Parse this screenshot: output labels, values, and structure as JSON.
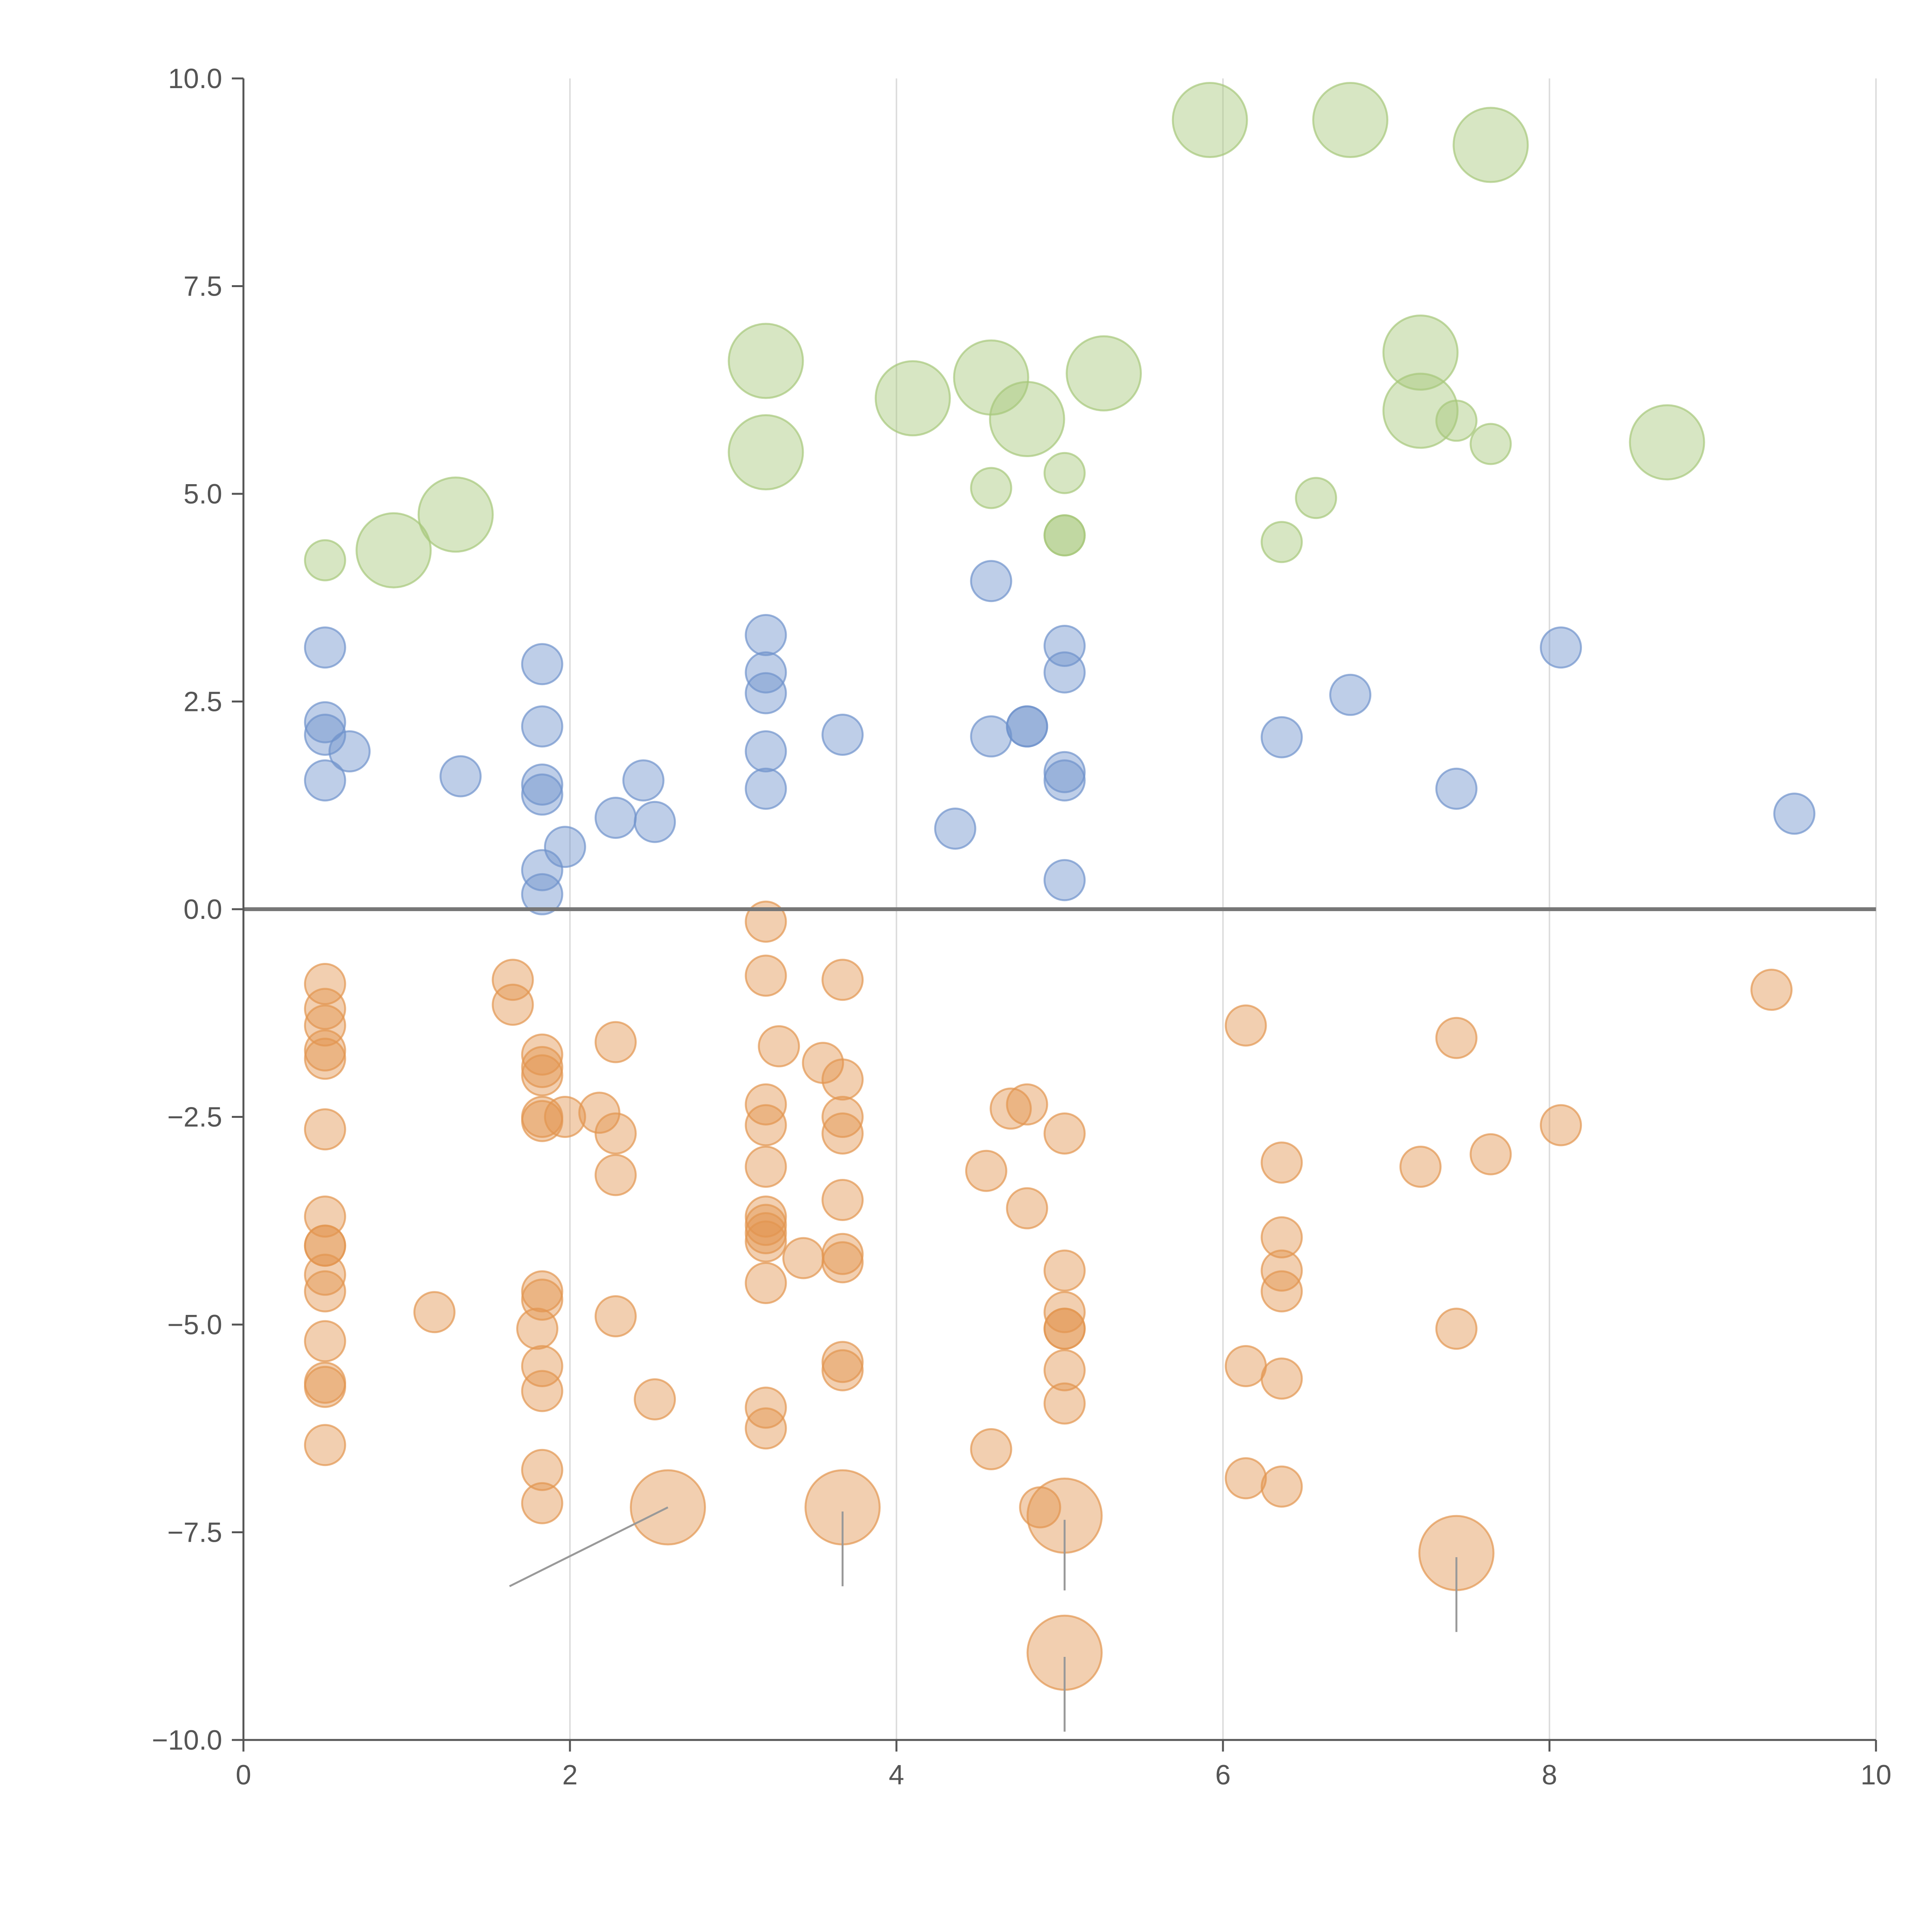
{
  "chart_data": {
    "type": "scatter",
    "title": "",
    "xlabel": "",
    "ylabel": "",
    "xlim": [
      0,
      10
    ],
    "ylim": [
      -10,
      10
    ],
    "x_ticks": [
      0,
      2,
      4,
      6,
      8,
      10
    ],
    "x_tick_labels": [
      "0",
      "2",
      "4",
      "6",
      "8",
      "10"
    ],
    "y_ticks": [
      10,
      7.5,
      5,
      2.5,
      0,
      -2.5,
      -5,
      -7.5,
      -10
    ],
    "y_tick_labels": [
      "10.0",
      "7.5",
      "5.0",
      "2.5",
      "0.0",
      "−2.5",
      "−5.0",
      "−7.5",
      "−10.0"
    ],
    "vertical_gridlines": true,
    "baseline_y": 0,
    "colors": {
      "blue": "#6f93cc",
      "orange": "#e39550",
      "green": "#a7c77b",
      "axis": "#555555",
      "grid": "#dddddd"
    },
    "series": [
      {
        "name": "positive-low",
        "color_key": "blue",
        "points": [
          [
            0.5,
            3.15,
            1
          ],
          [
            0.5,
            2.25,
            1
          ],
          [
            0.5,
            2.1,
            1
          ],
          [
            0.5,
            1.55,
            1
          ],
          [
            0.65,
            1.9,
            1
          ],
          [
            1.33,
            1.6,
            1
          ],
          [
            1.83,
            2.95,
            1
          ],
          [
            1.83,
            2.2,
            1
          ],
          [
            1.83,
            1.5,
            1
          ],
          [
            1.83,
            1.38,
            1
          ],
          [
            1.83,
            0.47,
            1
          ],
          [
            1.83,
            0.18,
            1
          ],
          [
            1.97,
            0.75,
            1
          ],
          [
            2.28,
            1.1,
            1
          ],
          [
            2.45,
            1.55,
            1
          ],
          [
            2.52,
            1.05,
            1
          ],
          [
            3.2,
            3.3,
            1
          ],
          [
            3.2,
            2.85,
            1
          ],
          [
            3.2,
            2.6,
            1
          ],
          [
            3.2,
            1.9,
            1
          ],
          [
            3.2,
            1.45,
            1
          ],
          [
            3.67,
            2.1,
            1
          ],
          [
            4.36,
            0.97,
            1
          ],
          [
            4.58,
            3.95,
            1
          ],
          [
            4.58,
            2.08,
            1
          ],
          [
            4.8,
            2.2,
            1
          ],
          [
            4.8,
            2.2,
            1
          ],
          [
            5.03,
            3.17,
            1
          ],
          [
            5.03,
            2.85,
            1
          ],
          [
            5.03,
            1.65,
            1
          ],
          [
            5.03,
            1.55,
            1
          ],
          [
            5.03,
            0.35,
            1
          ],
          [
            6.36,
            2.07,
            1
          ],
          [
            6.78,
            2.58,
            1
          ],
          [
            7.43,
            1.45,
            1
          ],
          [
            8.07,
            3.15,
            1
          ],
          [
            9.5,
            1.15,
            1
          ]
        ]
      },
      {
        "name": "negative",
        "color_key": "orange",
        "points": [
          [
            0.5,
            -0.9,
            1
          ],
          [
            0.5,
            -1.2,
            1
          ],
          [
            0.5,
            -1.4,
            1
          ],
          [
            0.5,
            -1.7,
            1
          ],
          [
            0.5,
            -1.8,
            1
          ],
          [
            0.5,
            -2.65,
            1
          ],
          [
            0.5,
            -3.7,
            1
          ],
          [
            0.5,
            -4.05,
            1
          ],
          [
            0.5,
            -4.05,
            1
          ],
          [
            0.5,
            -4.4,
            1
          ],
          [
            0.5,
            -4.6,
            1
          ],
          [
            0.5,
            -5.2,
            1
          ],
          [
            0.5,
            -5.7,
            1
          ],
          [
            0.5,
            -5.75,
            1
          ],
          [
            0.5,
            -6.45,
            1
          ],
          [
            1.17,
            -4.85,
            1
          ],
          [
            1.65,
            -0.85,
            1
          ],
          [
            1.65,
            -1.15,
            1
          ],
          [
            1.8,
            -5.05,
            1
          ],
          [
            1.83,
            -1.75,
            1
          ],
          [
            1.83,
            -1.9,
            1
          ],
          [
            1.83,
            -2.0,
            1
          ],
          [
            1.83,
            -2.5,
            1
          ],
          [
            1.83,
            -2.55,
            1
          ],
          [
            1.83,
            -4.6,
            1
          ],
          [
            1.83,
            -4.7,
            1
          ],
          [
            1.83,
            -5.5,
            1
          ],
          [
            1.83,
            -5.8,
            1
          ],
          [
            1.83,
            -6.75,
            1
          ],
          [
            1.83,
            -7.15,
            1
          ],
          [
            1.97,
            -2.5,
            1
          ],
          [
            2.18,
            -2.45,
            1
          ],
          [
            2.28,
            -1.6,
            1
          ],
          [
            2.28,
            -2.7,
            1
          ],
          [
            2.28,
            -3.2,
            1
          ],
          [
            2.28,
            -4.9,
            1
          ],
          [
            2.52,
            -5.9,
            1
          ],
          [
            2.6,
            -7.2,
            3
          ],
          [
            3.2,
            -0.15,
            1
          ],
          [
            3.2,
            -0.8,
            1
          ],
          [
            3.2,
            -2.35,
            1
          ],
          [
            3.2,
            -2.6,
            1
          ],
          [
            3.2,
            -3.1,
            1
          ],
          [
            3.2,
            -3.7,
            1
          ],
          [
            3.2,
            -3.8,
            1
          ],
          [
            3.2,
            -3.9,
            1
          ],
          [
            3.2,
            -4.0,
            1
          ],
          [
            3.2,
            -4.5,
            1
          ],
          [
            3.2,
            -6.0,
            1
          ],
          [
            3.2,
            -6.25,
            1
          ],
          [
            3.28,
            -1.65,
            1
          ],
          [
            3.43,
            -4.2,
            1
          ],
          [
            3.55,
            -1.85,
            1
          ],
          [
            3.67,
            -0.85,
            1
          ],
          [
            3.67,
            -2.05,
            1
          ],
          [
            3.67,
            -2.5,
            1
          ],
          [
            3.67,
            -2.7,
            1
          ],
          [
            3.67,
            -3.5,
            1
          ],
          [
            3.67,
            -4.15,
            1
          ],
          [
            3.67,
            -4.25,
            1
          ],
          [
            3.67,
            -5.45,
            1
          ],
          [
            3.67,
            -5.55,
            1
          ],
          [
            3.67,
            -7.2,
            3
          ],
          [
            4.55,
            -3.15,
            1
          ],
          [
            4.58,
            -6.5,
            1
          ],
          [
            4.7,
            -2.4,
            1
          ],
          [
            4.8,
            -2.35,
            1
          ],
          [
            4.8,
            -3.6,
            1
          ],
          [
            4.88,
            -7.2,
            1
          ],
          [
            5.03,
            -2.7,
            1
          ],
          [
            5.03,
            -4.35,
            1
          ],
          [
            5.03,
            -4.85,
            1
          ],
          [
            5.03,
            -5.05,
            1
          ],
          [
            5.03,
            -5.05,
            1
          ],
          [
            5.03,
            -5.55,
            1
          ],
          [
            5.03,
            -5.95,
            1
          ],
          [
            5.03,
            -7.3,
            3
          ],
          [
            5.03,
            -8.95,
            3
          ],
          [
            6.14,
            -1.4,
            1
          ],
          [
            6.14,
            -5.5,
            1
          ],
          [
            6.14,
            -6.85,
            1
          ],
          [
            6.36,
            -3.05,
            1
          ],
          [
            6.36,
            -3.95,
            1
          ],
          [
            6.36,
            -4.35,
            1
          ],
          [
            6.36,
            -4.6,
            1
          ],
          [
            6.36,
            -5.65,
            1
          ],
          [
            6.36,
            -6.95,
            1
          ],
          [
            7.21,
            -3.1,
            1
          ],
          [
            7.43,
            -1.55,
            1
          ],
          [
            7.43,
            -5.05,
            1
          ],
          [
            7.43,
            -7.75,
            3
          ],
          [
            7.64,
            -2.95,
            1
          ],
          [
            8.07,
            -2.6,
            1
          ],
          [
            9.36,
            -0.97,
            1
          ]
        ]
      },
      {
        "name": "positive-high",
        "color_key": "green",
        "points": [
          [
            0.5,
            4.2,
            1
          ],
          [
            0.92,
            4.32,
            3
          ],
          [
            1.3,
            4.75,
            3
          ],
          [
            3.2,
            6.6,
            3
          ],
          [
            3.2,
            5.5,
            3
          ],
          [
            4.1,
            6.15,
            3
          ],
          [
            4.58,
            6.4,
            3
          ],
          [
            4.58,
            5.07,
            1
          ],
          [
            4.8,
            5.9,
            3
          ],
          [
            5.03,
            5.25,
            1
          ],
          [
            5.03,
            4.5,
            1
          ],
          [
            5.03,
            4.5,
            1
          ],
          [
            5.27,
            6.45,
            3
          ],
          [
            5.92,
            9.5,
            3
          ],
          [
            6.36,
            4.42,
            1
          ],
          [
            6.57,
            4.95,
            1
          ],
          [
            6.78,
            9.5,
            3
          ],
          [
            7.21,
            6.7,
            3
          ],
          [
            7.21,
            6.0,
            3
          ],
          [
            7.43,
            5.88,
            1
          ],
          [
            7.64,
            9.2,
            3
          ],
          [
            7.64,
            5.6,
            1
          ],
          [
            8.72,
            5.62,
            3
          ]
        ]
      }
    ]
  }
}
